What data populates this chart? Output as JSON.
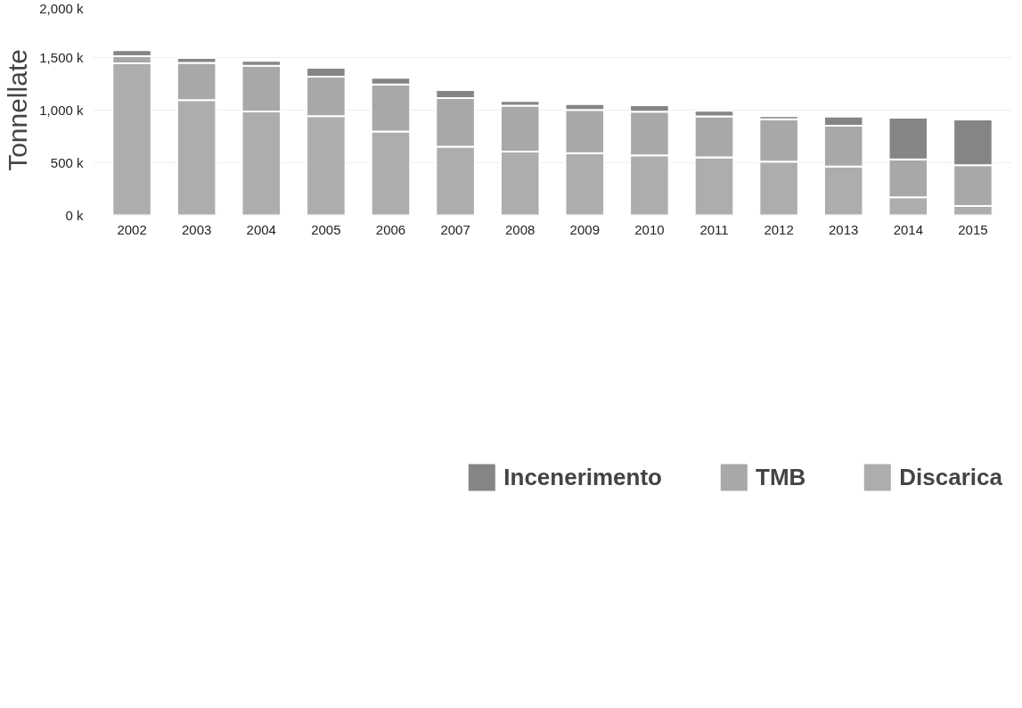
{
  "chart_data": {
    "type": "bar",
    "stacked": true,
    "ylabel": "Tonnellate",
    "categories": [
      "2002",
      "2003",
      "2004",
      "2005",
      "2006",
      "2007",
      "2008",
      "2009",
      "2010",
      "2011",
      "2012",
      "2013",
      "2014",
      "2015"
    ],
    "series": [
      {
        "name": "Discarica",
        "color": "#adadad",
        "values": [
          1445,
          1095,
          988,
          942,
          797,
          652,
          606,
          591,
          569,
          551,
          511,
          465,
          172,
          89
        ]
      },
      {
        "name": "TMB",
        "color": "#a8a8a8",
        "values": [
          67,
          354,
          434,
          375,
          446,
          462,
          437,
          412,
          416,
          390,
          403,
          387,
          360,
          388
        ]
      },
      {
        "name": "Incenerimento",
        "color": "#858585",
        "values": [
          58,
          46,
          46,
          86,
          65,
          77,
          43,
          55,
          61,
          53,
          28,
          86,
          397,
          434
        ]
      }
    ],
    "ylim": [
      0,
      2000
    ],
    "yticks": [
      {
        "value": 0,
        "label": "0 k"
      },
      {
        "value": 500,
        "label": "500 k"
      },
      {
        "value": 1000,
        "label": "1,000 k"
      },
      {
        "value": 1500,
        "label": "1,500 k"
      },
      {
        "value": 2000,
        "label": "2,000 k"
      }
    ],
    "grid": "y",
    "legend": "bottom"
  }
}
